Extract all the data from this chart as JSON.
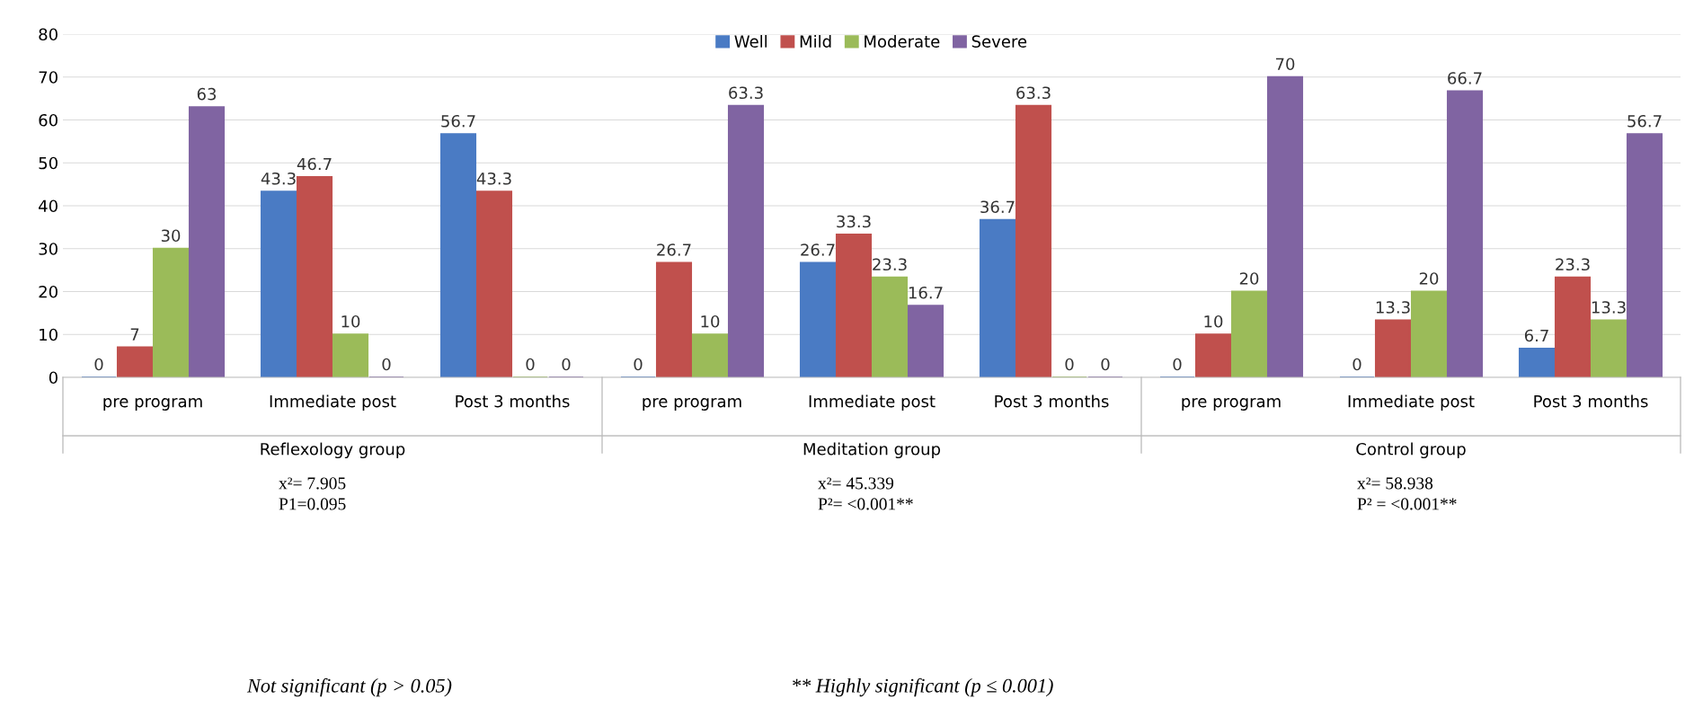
{
  "chart_data": {
    "type": "bar",
    "categories": [
      "pre program",
      "Immediate post",
      "Post 3 months",
      "pre program",
      "Immediate post",
      "Post 3 months",
      "pre program",
      "Immediate post",
      "Post 3 months"
    ],
    "series": [
      {
        "name": "Well",
        "color": "#4a7bc4",
        "values": [
          0,
          43.3,
          56.7,
          0,
          26.7,
          36.7,
          0,
          0,
          6.7
        ]
      },
      {
        "name": "Mild",
        "color": "#c0504d",
        "values": [
          7,
          46.7,
          43.3,
          26.7,
          33.3,
          63.3,
          10,
          13.3,
          23.3
        ]
      },
      {
        "name": "Moderate",
        "color": "#9bbb59",
        "values": [
          30,
          10,
          0,
          10,
          23.3,
          0,
          20,
          20,
          13.3
        ]
      },
      {
        "name": "Severe",
        "color": "#8064a2",
        "values": [
          63,
          0,
          0,
          63.3,
          16.7,
          0,
          70,
          66.7,
          56.7
        ]
      }
    ],
    "ylim": [
      0,
      80
    ],
    "yticks": [
      0,
      10,
      20,
      30,
      40,
      50,
      60,
      70,
      80
    ],
    "grid": "y",
    "legend": "top",
    "data_labels": true,
    "annotations": [
      "Reflexology group",
      "Meditation group",
      "Control group",
      "x²= 7.905\nP1=0.095",
      "x²= 45.339\nP²= <0.001**",
      "x²= 58.938\nP² = <0.001**",
      "Not significant (p > 0.05)",
      "** Highly significant (p ≤ 0.001)"
    ]
  }
}
